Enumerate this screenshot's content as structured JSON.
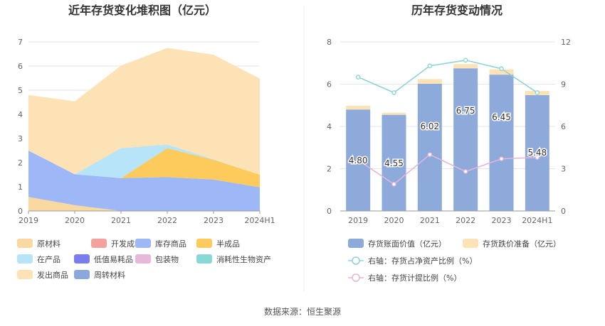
{
  "source_label": "数据来源：恒生聚源",
  "chart_data": [
    {
      "type": "area",
      "title": "近年存货变化堆积图（亿元）",
      "x": [
        "2019",
        "2020",
        "2021",
        "2022",
        "2023",
        "2024H1"
      ],
      "ylim": [
        0,
        7
      ],
      "yticks": [
        0,
        1,
        2,
        3,
        4,
        5,
        6,
        7
      ],
      "legend_position": "bottom",
      "series": [
        {
          "name": "原材料",
          "color": "#FAD9A0",
          "values": [
            0.58,
            0.24,
            0.0,
            0.0,
            0.0,
            0.0
          ]
        },
        {
          "name": "开发成本",
          "color": "#F4A09B",
          "values": [
            0,
            0,
            0,
            0,
            0,
            0
          ]
        },
        {
          "name": "库存商品",
          "color": "#9EB7F7",
          "values": [
            1.92,
            1.28,
            1.36,
            1.4,
            1.3,
            0.98
          ]
        },
        {
          "name": "半成品",
          "color": "#FCCB5B",
          "values": [
            0.0,
            0.0,
            0.0,
            1.2,
            0.82,
            0.52
          ]
        },
        {
          "name": "在产品",
          "color": "#B7E4F8",
          "values": [
            0.0,
            0.0,
            1.24,
            0.15,
            0.02,
            0.0
          ]
        },
        {
          "name": "低值易耗品",
          "color": "#7B7CF0",
          "values": [
            0,
            0,
            0,
            0,
            0,
            0
          ]
        },
        {
          "name": "包装物",
          "color": "#E8B8DA",
          "values": [
            0,
            0,
            0,
            0,
            0,
            0
          ]
        },
        {
          "name": "消耗性生物资产",
          "color": "#89D8D8",
          "values": [
            0,
            0,
            0,
            0,
            0,
            0
          ]
        },
        {
          "name": "发出商品",
          "color": "#FDE2B6",
          "values": [
            2.3,
            3.02,
            3.42,
            4.0,
            4.33,
            3.98
          ]
        },
        {
          "name": "周转材料",
          "color": "#8AA9DA",
          "values": [
            0,
            0,
            0,
            0,
            0,
            0
          ]
        }
      ]
    },
    {
      "type": "bar",
      "title": "历年存货变动情况",
      "categories": [
        "2019",
        "2020",
        "2021",
        "2022",
        "2023",
        "2024H1"
      ],
      "ylim": [
        0,
        8
      ],
      "yticks": [
        0,
        2,
        4,
        6,
        8
      ],
      "y2lim": [
        0,
        12
      ],
      "y2ticks": [
        0,
        3,
        6,
        9,
        12
      ],
      "legend_position": "bottom",
      "series": [
        {
          "name": "存货账面价值（亿元）",
          "kind": "bar",
          "axis": "left",
          "color": "#8DAADB",
          "values": [
            4.8,
            4.55,
            6.02,
            6.75,
            6.45,
            5.48
          ],
          "labels": [
            "4.80",
            "4.55",
            "6.02",
            "6.75",
            "6.45",
            "5.48"
          ]
        },
        {
          "name": "存货跌价准备（亿元）",
          "kind": "bar",
          "axis": "left",
          "color": "#FCE3B6",
          "values": [
            0.18,
            0.1,
            0.22,
            0.2,
            0.25,
            0.2
          ]
        },
        {
          "name": "右轴：存货占净资产比例（%）",
          "kind": "line",
          "axis": "right",
          "color": "#8ED3D6",
          "values": [
            9.5,
            8.4,
            10.3,
            10.7,
            10.1,
            8.4
          ]
        },
        {
          "name": "右轴：存货计提比例（%）",
          "kind": "line",
          "axis": "right",
          "color": "#E2B5DC",
          "values": [
            3.6,
            1.9,
            4.0,
            2.8,
            3.7,
            3.8
          ]
        }
      ]
    }
  ]
}
